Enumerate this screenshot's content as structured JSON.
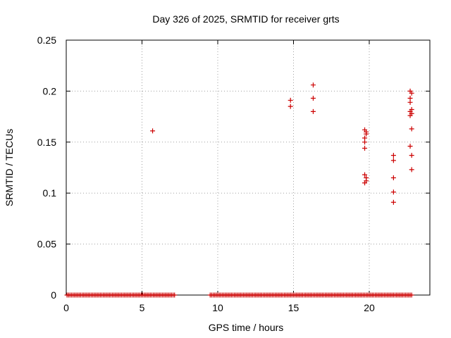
{
  "chart_data": {
    "type": "scatter",
    "title": "Day 326 of 2025, SRMTID for receiver grts",
    "xlabel": "GPS time / hours",
    "ylabel": "SRMTID / TECUs",
    "xlim": [
      0,
      24
    ],
    "ylim": [
      0,
      0.25
    ],
    "xticks": [
      0,
      5,
      10,
      15,
      20
    ],
    "xtick_labels": [
      "0",
      "5",
      "10",
      "15",
      "20"
    ],
    "yticks": [
      0,
      0.05,
      0.1,
      0.15,
      0.2,
      0.25
    ],
    "ytick_labels": [
      "0",
      "0.05",
      "0.1",
      "0.15",
      "0.2",
      "0.25"
    ],
    "grid": true,
    "legend": "none",
    "marker": "plus",
    "color": "#cc0000",
    "zero_segments": [
      [
        0.05,
        7.2
      ],
      [
        9.5,
        22.8
      ]
    ],
    "zero_step": 0.1,
    "points": [
      [
        5.7,
        0.161
      ],
      [
        14.8,
        0.185
      ],
      [
        14.8,
        0.191
      ],
      [
        16.3,
        0.206
      ],
      [
        16.3,
        0.193
      ],
      [
        16.3,
        0.18
      ],
      [
        19.7,
        0.162
      ],
      [
        19.8,
        0.16
      ],
      [
        19.8,
        0.158
      ],
      [
        19.7,
        0.154
      ],
      [
        19.7,
        0.15
      ],
      [
        19.7,
        0.144
      ],
      [
        19.7,
        0.118
      ],
      [
        19.8,
        0.115
      ],
      [
        19.8,
        0.112
      ],
      [
        19.7,
        0.11
      ],
      [
        21.6,
        0.137
      ],
      [
        21.6,
        0.132
      ],
      [
        21.6,
        0.115
      ],
      [
        21.6,
        0.101
      ],
      [
        21.6,
        0.091
      ],
      [
        22.7,
        0.2
      ],
      [
        22.8,
        0.198
      ],
      [
        22.7,
        0.193
      ],
      [
        22.7,
        0.189
      ],
      [
        22.8,
        0.182
      ],
      [
        22.7,
        0.18
      ],
      [
        22.8,
        0.178
      ],
      [
        22.7,
        0.176
      ],
      [
        22.8,
        0.163
      ],
      [
        22.7,
        0.146
      ],
      [
        22.8,
        0.137
      ],
      [
        22.8,
        0.123
      ]
    ]
  }
}
